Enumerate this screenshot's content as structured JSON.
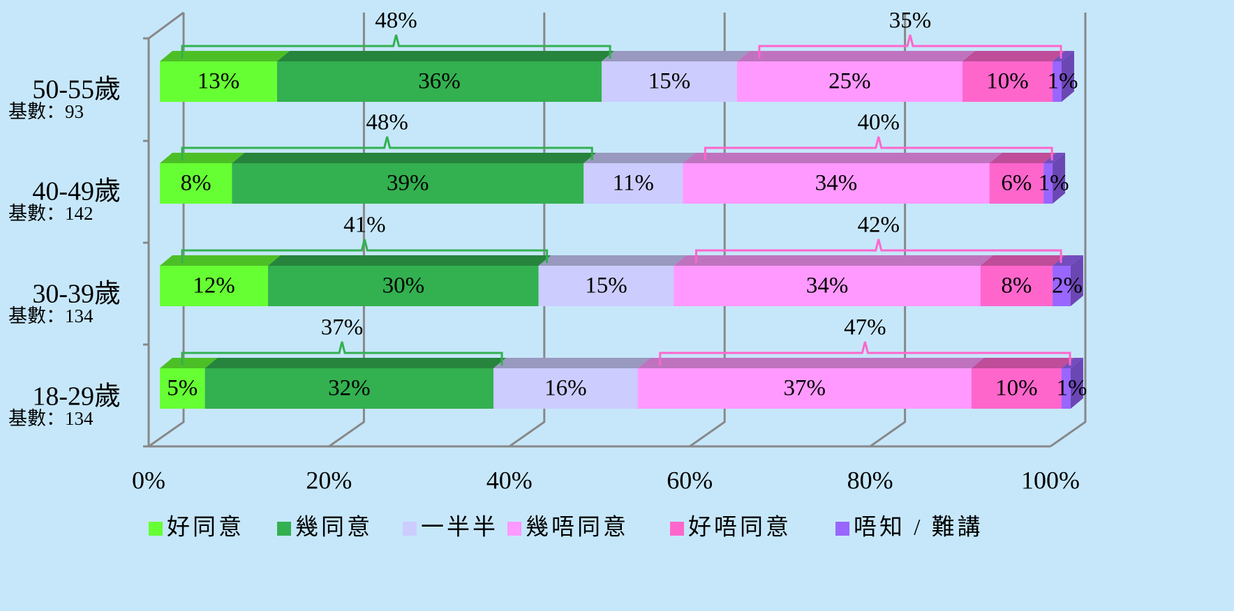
{
  "chart_data": {
    "type": "stacked_bar_3d",
    "categories": [
      "50-55歲",
      "40-49歲",
      "30-39歲",
      "18-29歲"
    ],
    "category_notes": [
      "基數：93",
      "基數：142",
      "基數：134",
      "基數：134"
    ],
    "series": [
      {
        "name": "好同意",
        "color": "#66ff33",
        "values": [
          13,
          8,
          12,
          5
        ],
        "value_labels": [
          "13%",
          "8%",
          "12%",
          "5%"
        ]
      },
      {
        "name": "幾同意",
        "color": "#33b050",
        "values": [
          36,
          39,
          30,
          32
        ],
        "value_labels": [
          "36%",
          "39%",
          "30%",
          "32%"
        ]
      },
      {
        "name": "一半半",
        "color": "#ccccff",
        "values": [
          15,
          11,
          15,
          16
        ],
        "value_labels": [
          "15%",
          "11%",
          "15%",
          "16%"
        ]
      },
      {
        "name": "幾唔同意",
        "color": "#ff99ff",
        "values": [
          25,
          34,
          34,
          37
        ],
        "value_labels": [
          "25%",
          "34%",
          "34%",
          "37%"
        ]
      },
      {
        "name": "好唔同意",
        "color": "#ff66cc",
        "values": [
          10,
          6,
          8,
          10
        ],
        "value_labels": [
          "10%",
          "6%",
          "8%",
          "10%"
        ]
      },
      {
        "name": "唔知 / 難講",
        "color": "#9966ff",
        "values": [
          1,
          1,
          2,
          1
        ],
        "value_labels": [
          "1%",
          "1%",
          "2%",
          "1%"
        ]
      }
    ],
    "agree_totals": {
      "color": "#33b050",
      "values": [
        48,
        48,
        41,
        37
      ],
      "value_labels": [
        "48%",
        "48%",
        "41%",
        "37%"
      ]
    },
    "disagree_totals": {
      "color": "#ff66cc",
      "values": [
        35,
        40,
        42,
        47
      ],
      "value_labels": [
        "35%",
        "40%",
        "42%",
        "47%"
      ]
    },
    "xlim": [
      0,
      100
    ],
    "xticks": [
      {
        "value": 0,
        "label": "0%"
      },
      {
        "value": 20,
        "label": "20%"
      },
      {
        "value": 40,
        "label": "40%"
      },
      {
        "value": 60,
        "label": "60%"
      },
      {
        "value": 80,
        "label": "80%"
      },
      {
        "value": 100,
        "label": "100%"
      }
    ],
    "grid": true,
    "legend": "bottom"
  }
}
